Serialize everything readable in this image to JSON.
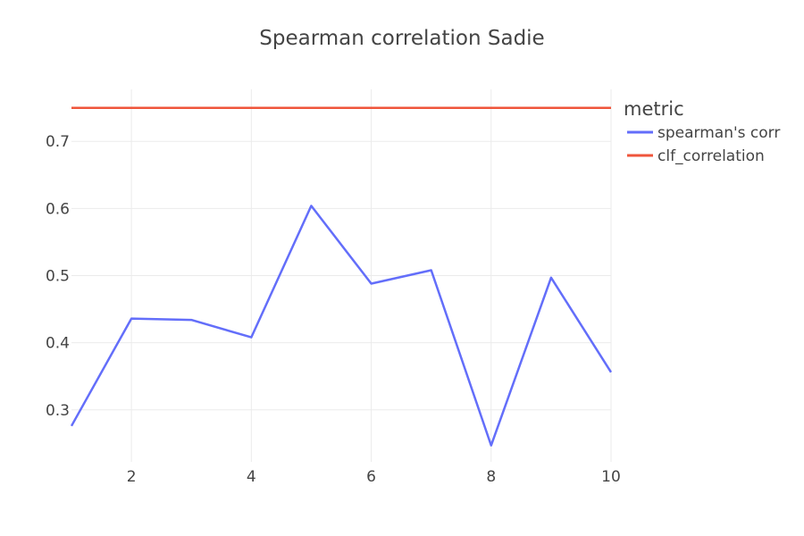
{
  "chart_data": {
    "type": "line",
    "title": "Spearman correlation Sadie",
    "xlabel": "",
    "ylabel": "",
    "xlim": [
      1,
      10
    ],
    "ylim": [
      0.2225,
      0.7775
    ],
    "x_ticks": [
      2,
      4,
      6,
      8,
      10
    ],
    "y_ticks": [
      0.3,
      0.4,
      0.5,
      0.6,
      0.7
    ],
    "x_tick_labels": [
      "2",
      "4",
      "6",
      "8",
      "10"
    ],
    "y_tick_labels": [
      "0.3",
      "0.4",
      "0.5",
      "0.6",
      "0.7"
    ],
    "grid": true,
    "legend": {
      "title": "metric",
      "position": "right"
    },
    "series": [
      {
        "name": "spearman's corr",
        "color": "#636efa",
        "x": [
          1,
          2,
          3,
          4,
          5,
          6,
          7,
          8,
          9,
          10
        ],
        "y": [
          0.276,
          0.436,
          0.434,
          0.408,
          0.604,
          0.488,
          0.508,
          0.247,
          0.497,
          0.356
        ]
      },
      {
        "name": "clf_correlation",
        "color": "#ef553b",
        "x": [
          1,
          10
        ],
        "y": [
          0.75,
          0.75
        ]
      }
    ]
  }
}
